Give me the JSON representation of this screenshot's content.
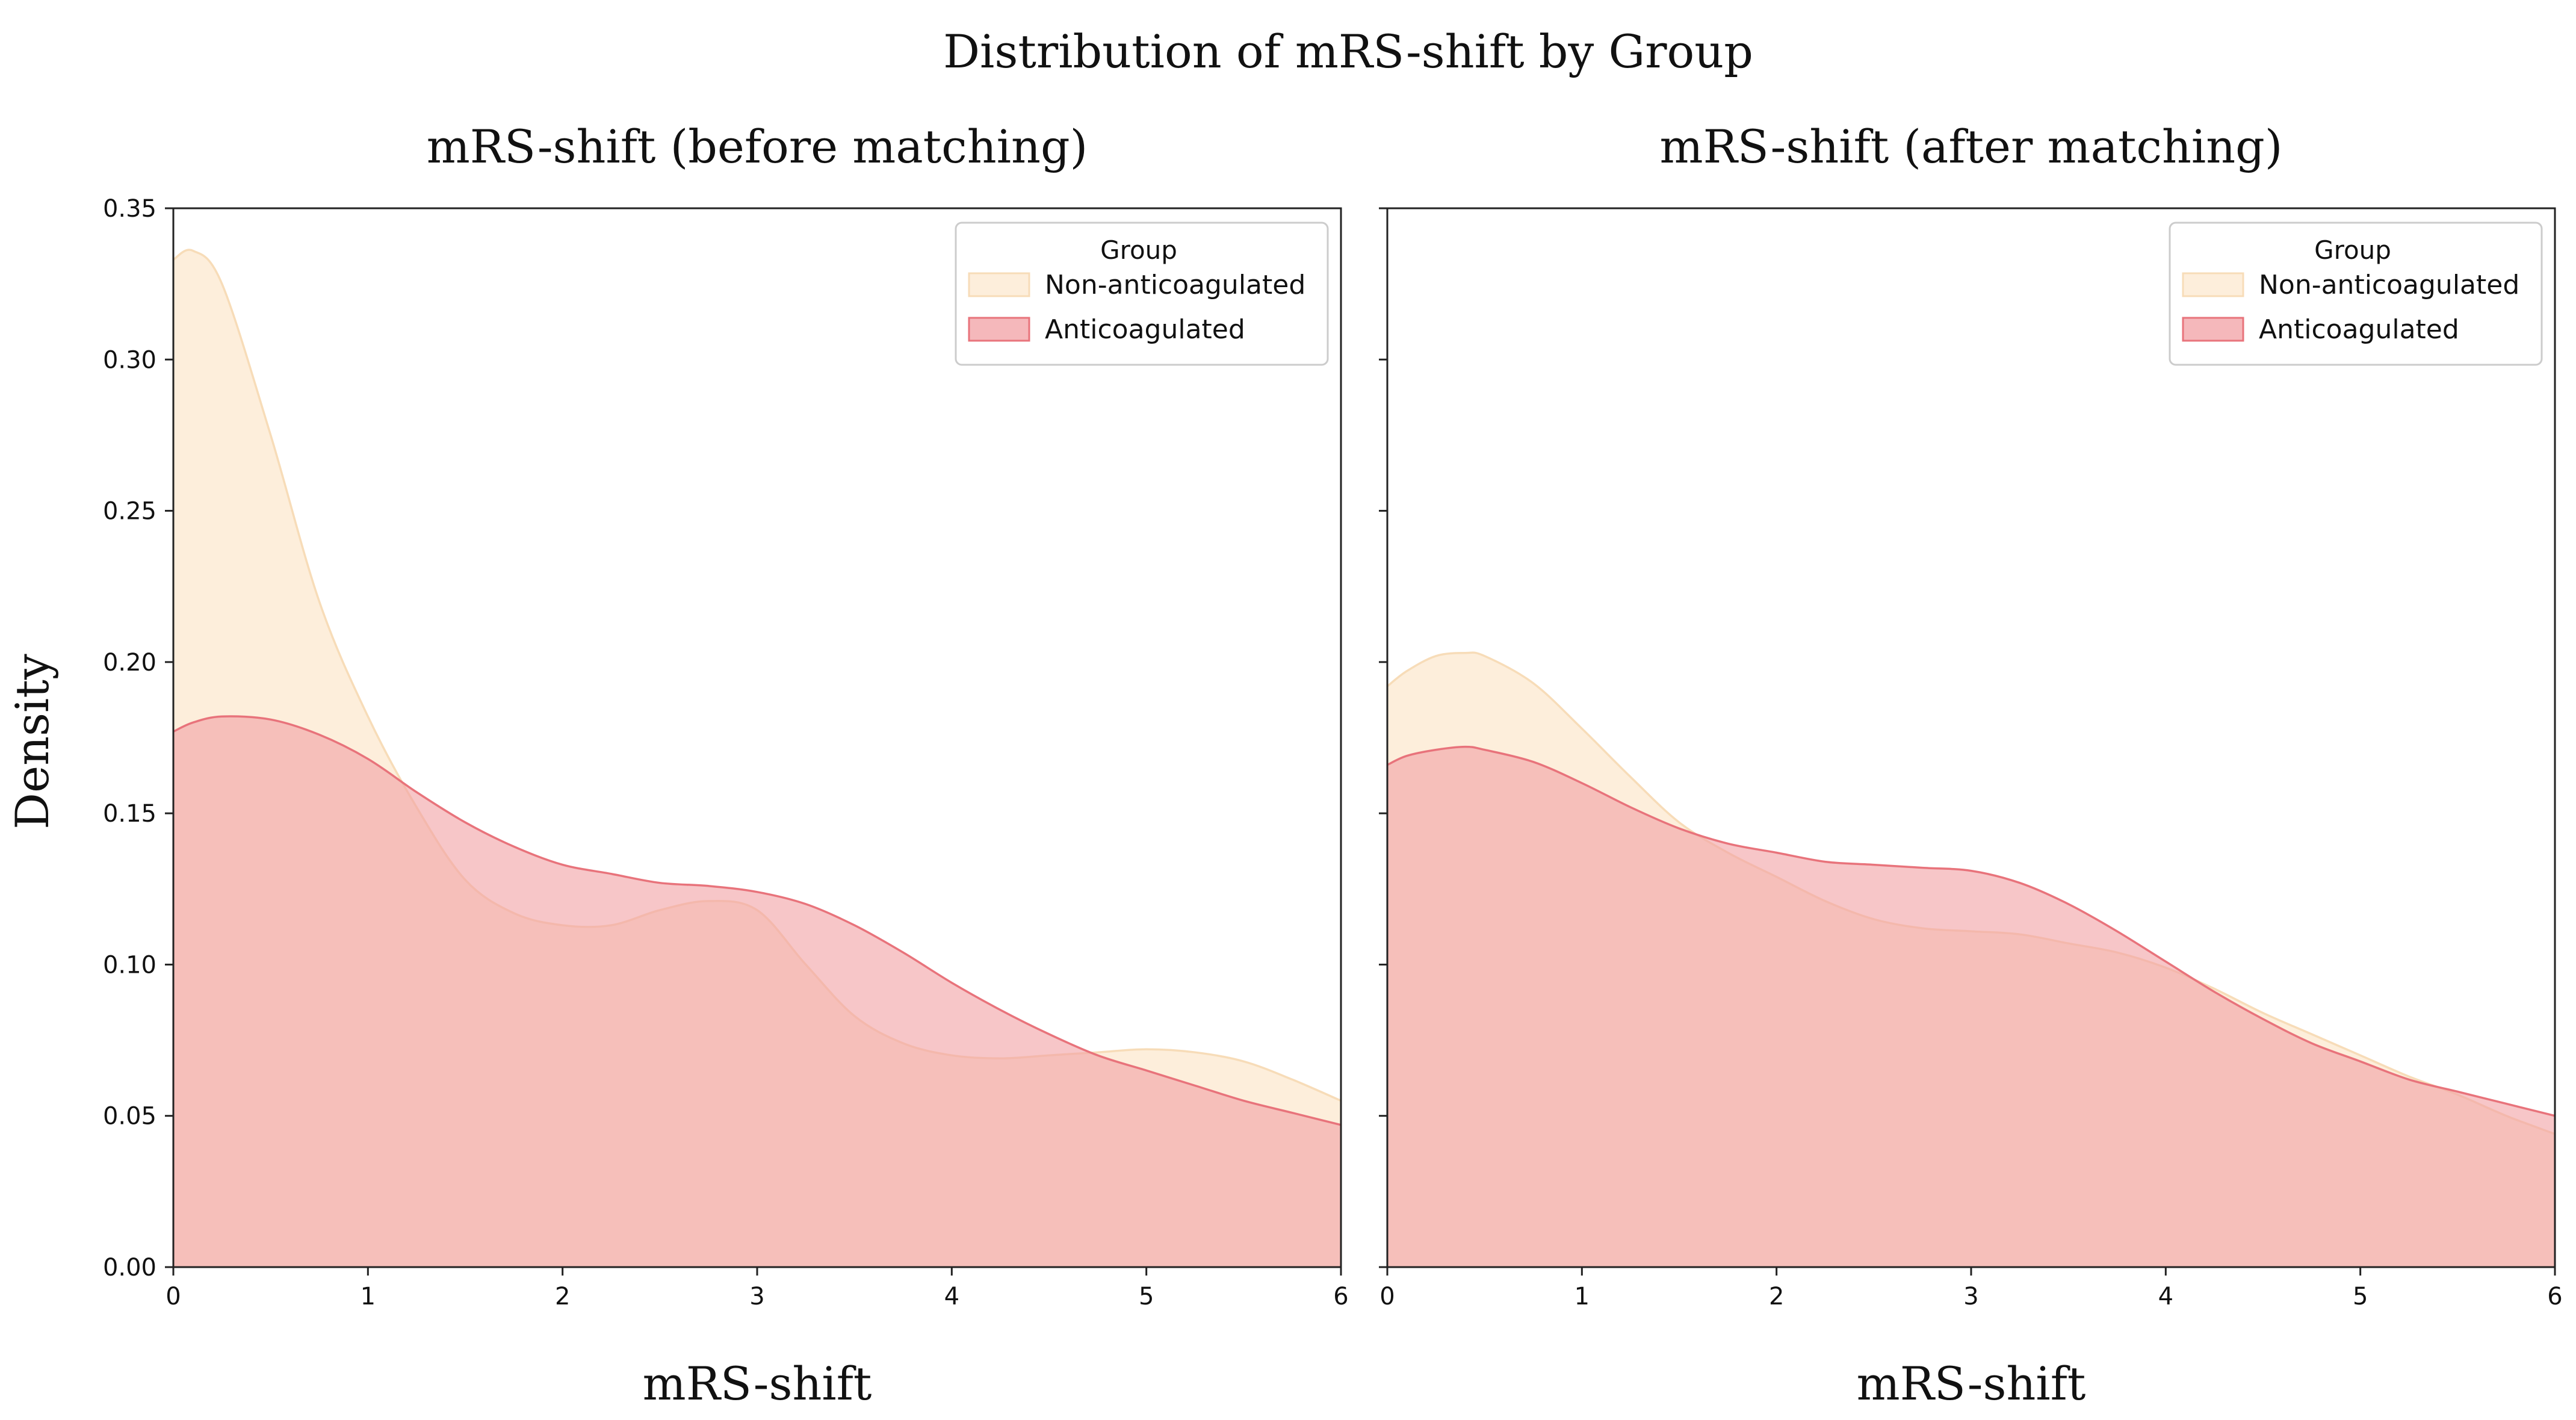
{
  "figure": {
    "suptitle": "Distribution of mRS-shift by Group",
    "ylabel": "Density"
  },
  "colors": {
    "non_anticoagulated_fill": "#fdeedb",
    "non_anticoagulated_line": "#f7dcb8",
    "anticoagulated_fill": "#f2a0a4",
    "anticoagulated_line": "#e8737b",
    "overlap_fill": "#f9d2c3",
    "axis": "#222222"
  },
  "chart_data": [
    {
      "type": "area",
      "title": "mRS-shift (before matching)",
      "xlabel": "mRS-shift",
      "ylabel": "Density",
      "xlim": [
        0,
        6
      ],
      "ylim": [
        0,
        0.35
      ],
      "xticks": [
        "0",
        "1",
        "2",
        "3",
        "4",
        "5",
        "6"
      ],
      "yticks": [
        "0.00",
        "0.05",
        "0.10",
        "0.15",
        "0.20",
        "0.25",
        "0.30",
        "0.35"
      ],
      "legend": {
        "title": "Group",
        "position": "top-right",
        "entries": [
          "Non-anticoagulated",
          "Anticoagulated"
        ]
      },
      "x": [
        0,
        0.1,
        0.25,
        0.5,
        0.75,
        1,
        1.25,
        1.5,
        1.75,
        2,
        2.25,
        2.5,
        2.75,
        3,
        3.25,
        3.5,
        3.75,
        4,
        4.25,
        4.5,
        4.75,
        5,
        5.25,
        5.5,
        5.75,
        6
      ],
      "series": [
        {
          "name": "Non-anticoagulated",
          "values": [
            0.333,
            0.336,
            0.325,
            0.275,
            0.22,
            0.182,
            0.152,
            0.128,
            0.117,
            0.113,
            0.113,
            0.118,
            0.121,
            0.118,
            0.1,
            0.083,
            0.074,
            0.07,
            0.069,
            0.07,
            0.071,
            0.072,
            0.071,
            0.068,
            0.062,
            0.055
          ]
        },
        {
          "name": "Anticoagulated",
          "values": [
            0.177,
            0.18,
            0.182,
            0.181,
            0.176,
            0.168,
            0.157,
            0.147,
            0.139,
            0.133,
            0.13,
            0.127,
            0.126,
            0.124,
            0.12,
            0.113,
            0.104,
            0.094,
            0.085,
            0.077,
            0.07,
            0.065,
            0.06,
            0.055,
            0.051,
            0.047
          ]
        }
      ]
    },
    {
      "type": "area",
      "title": "mRS-shift (after matching)",
      "xlabel": "mRS-shift",
      "ylabel": "Density",
      "xlim": [
        0,
        6
      ],
      "ylim": [
        0,
        0.35
      ],
      "xticks": [
        "0",
        "1",
        "2",
        "3",
        "4",
        "5",
        "6"
      ],
      "yticks": [
        "0.00",
        "0.05",
        "0.10",
        "0.15",
        "0.20",
        "0.25",
        "0.30",
        "0.35"
      ],
      "legend": {
        "title": "Group",
        "position": "top-right",
        "entries": [
          "Non-anticoagulated",
          "Anticoagulated"
        ]
      },
      "x": [
        0,
        0.1,
        0.25,
        0.4,
        0.5,
        0.75,
        1,
        1.25,
        1.5,
        1.75,
        2,
        2.25,
        2.5,
        2.75,
        3,
        3.25,
        3.5,
        3.75,
        4,
        4.25,
        4.5,
        4.75,
        5,
        5.25,
        5.5,
        5.75,
        6
      ],
      "series": [
        {
          "name": "Non-anticoagulated",
          "values": [
            0.192,
            0.197,
            0.202,
            0.203,
            0.202,
            0.193,
            0.178,
            0.162,
            0.147,
            0.137,
            0.129,
            0.121,
            0.115,
            0.112,
            0.111,
            0.11,
            0.107,
            0.104,
            0.099,
            0.092,
            0.084,
            0.077,
            0.07,
            0.063,
            0.057,
            0.05,
            0.044
          ]
        },
        {
          "name": "Anticoagulated",
          "values": [
            0.166,
            0.169,
            0.171,
            0.172,
            0.171,
            0.167,
            0.16,
            0.152,
            0.145,
            0.14,
            0.137,
            0.134,
            0.133,
            0.132,
            0.131,
            0.127,
            0.12,
            0.111,
            0.101,
            0.091,
            0.082,
            0.074,
            0.068,
            0.062,
            0.058,
            0.054,
            0.05
          ]
        }
      ]
    }
  ]
}
